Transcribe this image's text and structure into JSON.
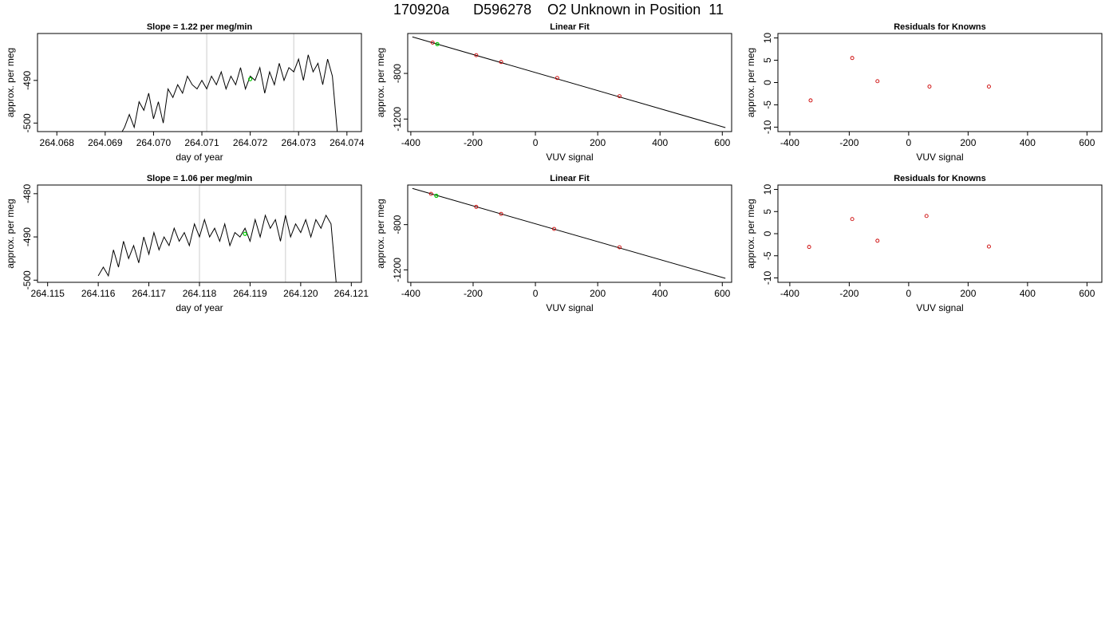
{
  "page_title": "170920a      D596278    O2 Unknown in Position  11",
  "colors": {
    "line": "#000000",
    "known_point": "#cc0000",
    "unknown_point": "#00cc00",
    "marker_line": "#cccccc"
  },
  "chart_data": [
    {
      "id": "ts1",
      "type": "line",
      "title": "Slope =  1.22  per meg/min",
      "xlabel": "day of year",
      "ylabel": "approx. per meg",
      "xlim": [
        264.0676,
        264.0743
      ],
      "ylim": [
        -502.0,
        -479.0
      ],
      "xticks": [
        264.068,
        264.069,
        264.07,
        264.071,
        264.072,
        264.073,
        264.074
      ],
      "xtick_labels": [
        "264.068",
        "264.069",
        "264.070",
        "264.071",
        "264.072",
        "264.073",
        "264.074"
      ],
      "yticks": [
        -500,
        -490
      ],
      "ytick_labels": [
        "-500",
        "-490"
      ],
      "vlines": [
        264.0711,
        264.0729
      ],
      "unknown_point": {
        "x": 264.072,
        "y": -489.7
      },
      "series": [
        {
          "x": [
            264.0693,
            264.0694,
            264.0695,
            264.0696,
            264.0697,
            264.0698,
            264.0699,
            264.07,
            264.0701,
            264.0702,
            264.0703,
            264.0704,
            264.0705,
            264.0706,
            264.0707,
            264.0708,
            264.0709,
            264.071,
            264.0711,
            264.0712,
            264.0713,
            264.0714,
            264.0715,
            264.0716,
            264.0717,
            264.0718,
            264.0719,
            264.072,
            264.0721,
            264.0722,
            264.0723,
            264.0724,
            264.0725,
            264.0726,
            264.0727,
            264.0728,
            264.0729,
            264.073,
            264.0731,
            264.0732,
            264.0733,
            264.0734,
            264.0735,
            264.0736,
            264.0737,
            264.0738
          ],
          "y": [
            -503,
            -501,
            -498,
            -501,
            -495,
            -497,
            -493,
            -499,
            -495,
            -500,
            -492,
            -494,
            -491,
            -493,
            -489,
            -491,
            -492,
            -490,
            -492,
            -489,
            -491,
            -488,
            -492,
            -489,
            -491,
            -487,
            -492,
            -489,
            -490,
            -487,
            -493,
            -488,
            -491,
            -486,
            -490,
            -487,
            -488,
            -485,
            -490,
            -484,
            -488,
            -486,
            -491,
            -485,
            -489,
            -502
          ],
          "points_note": ""
        }
      ]
    },
    {
      "id": "fit1",
      "type": "scatter",
      "title": "Linear Fit",
      "xlabel": "VUV signal",
      "ylabel": "approx. per meg",
      "xlim": [
        -410,
        630
      ],
      "ylim": [
        -1310,
        -450
      ],
      "xticks": [
        -400,
        -200,
        0,
        200,
        400,
        600
      ],
      "xtick_labels": [
        "-400",
        "-200",
        "0",
        "200",
        "400",
        "600"
      ],
      "yticks": [
        -1200,
        -800
      ],
      "ytick_labels": [
        "-1200",
        "-800"
      ],
      "fit_line": {
        "x": [
          -395,
          610
        ],
        "y": [
          -480,
          -1275
        ]
      },
      "known_points": {
        "x": [
          -330,
          -190,
          -110,
          70,
          270
        ],
        "y": [
          -530,
          -640,
          -700,
          -840,
          -1000
        ]
      },
      "unknown_point": {
        "x": -315,
        "y": -543
      }
    },
    {
      "id": "res1",
      "type": "scatter",
      "title": "Residuals for Knowns",
      "xlabel": "VUV signal",
      "ylabel": "approx. per meg",
      "xlim": [
        -440,
        650
      ],
      "ylim": [
        -11,
        11
      ],
      "xticks": [
        -400,
        -200,
        0,
        200,
        400,
        600
      ],
      "xtick_labels": [
        "-400",
        "-200",
        "0",
        "200",
        "400",
        "600"
      ],
      "yticks": [
        -10,
        -5,
        0,
        5,
        10
      ],
      "ytick_labels": [
        "-10",
        "-5",
        "0",
        "5",
        "10"
      ],
      "known_points": {
        "x": [
          -330,
          -190,
          -105,
          70,
          270
        ],
        "y": [
          -4,
          5.5,
          0.3,
          -0.9,
          -0.9
        ]
      }
    },
    {
      "id": "ts2",
      "type": "line",
      "title": "Slope =  1.06  per meg/min",
      "xlabel": "day of year",
      "ylabel": "approx. per meg",
      "xlim": [
        264.1148,
        264.1212
      ],
      "ylim": [
        -500.5,
        -478.0
      ],
      "xticks": [
        264.115,
        264.116,
        264.117,
        264.118,
        264.119,
        264.12,
        264.121
      ],
      "xtick_labels": [
        "264.115",
        "264.116",
        "264.117",
        "264.118",
        "264.119",
        "264.120",
        "264.121"
      ],
      "yticks": [
        -500,
        -490,
        -480
      ],
      "ytick_labels": [
        "-500",
        "-490",
        "-480"
      ],
      "vlines": [
        264.118,
        264.1197
      ],
      "unknown_point": {
        "x": 264.1189,
        "y": -489.3
      },
      "series": [
        {
          "x": [
            264.116,
            264.1161,
            264.1162,
            264.1163,
            264.1164,
            264.1165,
            264.1166,
            264.1167,
            264.1168,
            264.1169,
            264.117,
            264.1171,
            264.1172,
            264.1173,
            264.1174,
            264.1175,
            264.1176,
            264.1177,
            264.1178,
            264.1179,
            264.118,
            264.1181,
            264.1182,
            264.1183,
            264.1184,
            264.1185,
            264.1186,
            264.1187,
            264.1188,
            264.1189,
            264.119,
            264.1191,
            264.1192,
            264.1193,
            264.1194,
            264.1195,
            264.1196,
            264.1197,
            264.1198,
            264.1199,
            264.12,
            264.1201,
            264.1202,
            264.1203,
            264.1204,
            264.1205,
            264.1206,
            264.1207
          ],
          "y": [
            -499,
            -497,
            -499,
            -493,
            -497,
            -491,
            -495,
            -492,
            -496,
            -490,
            -494,
            -489,
            -493,
            -490,
            -492,
            -488,
            -491,
            -489,
            -492,
            -487,
            -490,
            -486,
            -490,
            -488,
            -491,
            -487,
            -492,
            -489,
            -490,
            -488,
            -491,
            -486,
            -490,
            -485,
            -488,
            -486,
            -491,
            -485,
            -490,
            -487,
            -489,
            -486,
            -490,
            -486,
            -488,
            -485,
            -487,
            -500.5
          ]
        }
      ]
    },
    {
      "id": "fit2",
      "type": "scatter",
      "title": "Linear Fit",
      "xlabel": "VUV signal",
      "ylabel": "approx. per meg",
      "xlim": [
        -410,
        630
      ],
      "ylim": [
        -1310,
        -450
      ],
      "xticks": [
        -400,
        -200,
        0,
        200,
        400,
        600
      ],
      "xtick_labels": [
        "-400",
        "-200",
        "0",
        "200",
        "400",
        "600"
      ],
      "yticks": [
        -1200,
        -800
      ],
      "ytick_labels": [
        "-1200",
        "-800"
      ],
      "fit_line": {
        "x": [
          -395,
          610
        ],
        "y": [
          -480,
          -1275
        ]
      },
      "known_points": {
        "x": [
          -335,
          -190,
          -110,
          60,
          270
        ],
        "y": [
          -528,
          -643,
          -705,
          -838,
          -1000
        ]
      },
      "unknown_point": {
        "x": -318,
        "y": -545
      }
    },
    {
      "id": "res2",
      "type": "scatter",
      "title": "Residuals for Knowns",
      "xlabel": "VUV signal",
      "ylabel": "approx. per meg",
      "xlim": [
        -440,
        650
      ],
      "ylim": [
        -11,
        11
      ],
      "xticks": [
        -400,
        -200,
        0,
        200,
        400,
        600
      ],
      "xtick_labels": [
        "-400",
        "-200",
        "0",
        "200",
        "400",
        "600"
      ],
      "yticks": [
        -10,
        -5,
        0,
        5,
        10
      ],
      "ytick_labels": [
        "-10",
        "-5",
        "0",
        "5",
        "10"
      ],
      "known_points": {
        "x": [
          -335,
          -190,
          -105,
          60,
          270
        ],
        "y": [
          -3,
          3.3,
          -1.6,
          4,
          -2.9
        ]
      }
    }
  ]
}
